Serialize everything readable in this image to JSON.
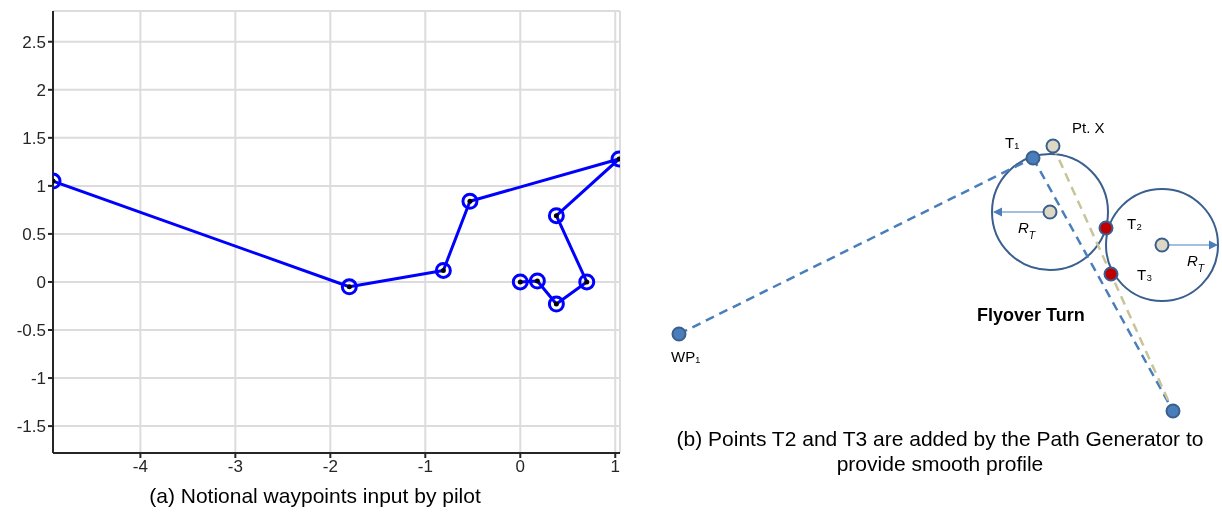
{
  "chart_data": [
    {
      "type": "line",
      "x": [
        0,
        0.18,
        0.38,
        0.7,
        0.38,
        1.04,
        -0.53,
        -0.81,
        -1.8,
        -4.92
      ],
      "values": [
        0,
        0.01,
        -0.23,
        0,
        0.69,
        1.28,
        0.84,
        0.12,
        -0.05,
        1.05
      ],
      "color": "#0000ff",
      "marker": "circle",
      "line_style": "solid",
      "xlim": [
        -4.92,
        1.05
      ],
      "xticks": [
        -4,
        -3,
        -2,
        -1,
        0,
        1
      ],
      "ylim": [
        -1.78,
        2.82
      ],
      "yticks": [
        -1.5,
        -1,
        -0.5,
        0,
        0.5,
        1,
        1.5,
        2,
        2.5
      ],
      "grid": true,
      "annotations": [
        "(a) Notional waypoints input by pilot"
      ]
    },
    {
      "type": "other",
      "annotations": [
        "T₁",
        "Pt. X",
        "R$_{T}$",
        "T₂",
        "T₃",
        "R$_{T}$",
        "Flyover Turn",
        "WP₁",
        "(b) Points T2 and T3 are added by the Path Generator to provide smooth profile"
      ]
    }
  ]
}
